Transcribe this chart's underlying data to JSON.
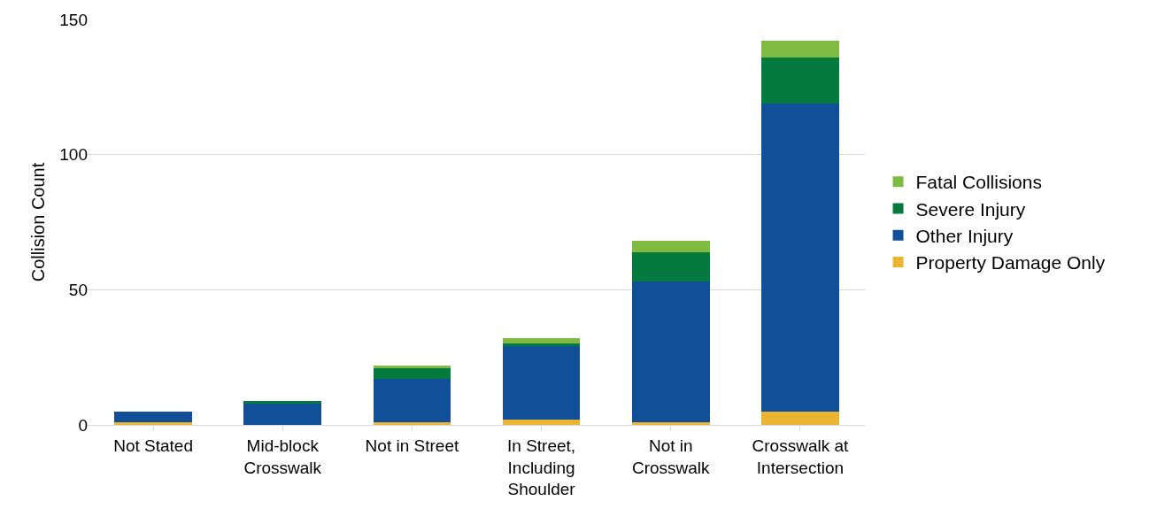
{
  "chart_data": {
    "type": "bar",
    "stacked": true,
    "ylabel": "Collision Count",
    "categories": [
      "Not Stated",
      "Mid-block Crosswalk",
      "Not in Street",
      "In Street, Including Shoulder",
      "Not in Crosswalk",
      "Crosswalk at Intersection"
    ],
    "series": [
      {
        "name": "Property Damage Only",
        "color": "#e9b533",
        "values": [
          1,
          0,
          1,
          2,
          1,
          5
        ]
      },
      {
        "name": "Other Injury",
        "color": "#114f98",
        "values": [
          4,
          8,
          16,
          27,
          52,
          114
        ]
      },
      {
        "name": "Severe Injury",
        "color": "#057a3e",
        "values": [
          0,
          1,
          4,
          1,
          11,
          17
        ]
      },
      {
        "name": "Fatal Collisions",
        "color": "#7fba42",
        "values": [
          0,
          0,
          1,
          2,
          4,
          6
        ]
      }
    ],
    "ylim": [
      0,
      150
    ],
    "yticks": [
      0,
      50,
      100,
      150
    ],
    "grid": "y",
    "legend": "right"
  }
}
